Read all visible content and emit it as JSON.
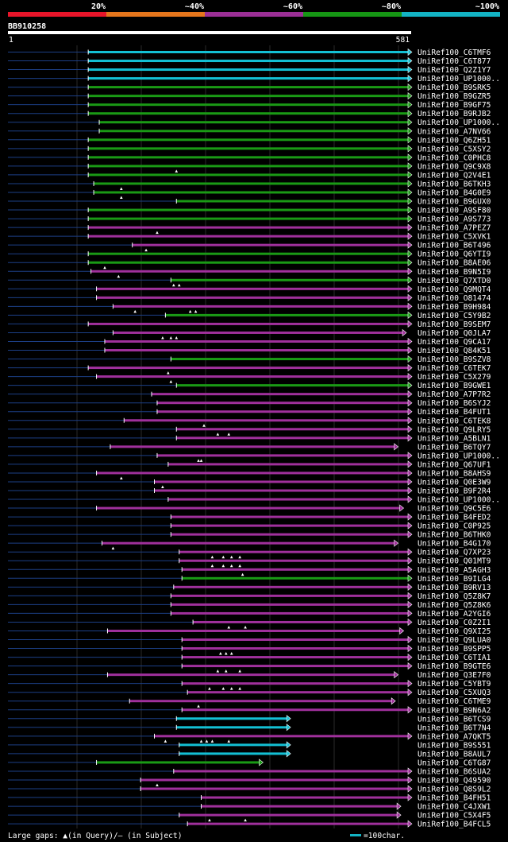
{
  "chart_data": {
    "type": "alignment-overview",
    "query_id": "BB910258",
    "query_start": 1,
    "query_end": 581,
    "identity_legend": [
      {
        "label": "20%",
        "color": "#e8152a"
      },
      {
        "label": "~40%",
        "color": "#e5761c"
      },
      {
        "label": "~60%",
        "color": "#9b2f96"
      },
      {
        "label": "~80%",
        "color": "#169614"
      },
      {
        "label": "~100%",
        "color": "#13b3c4"
      }
    ],
    "footer": {
      "gap_legend": "Large gaps: ▲(in Query)/– (in Subject)",
      "scale_legend": "=100char."
    },
    "scale_bar_length": 100,
    "hits": [
      {
        "name": "UniRef100_C6TMF6",
        "start": 160,
        "end": 740,
        "color": "cyan",
        "gaps": []
      },
      {
        "name": "UniRef100_C6T877",
        "start": 160,
        "end": 740,
        "color": "cyan",
        "gaps": []
      },
      {
        "name": "UniRef100_Q2Z1Y7",
        "start": 160,
        "end": 740,
        "color": "cyan",
        "gaps": []
      },
      {
        "name": "UniRef100_UP1000..",
        "start": 160,
        "end": 740,
        "color": "cyan",
        "gaps": []
      },
      {
        "name": "UniRef100_B9SRK5",
        "start": 160,
        "end": 740,
        "color": "green",
        "gaps": []
      },
      {
        "name": "UniRef100_B9GZR5",
        "start": 160,
        "end": 740,
        "color": "green",
        "gaps": []
      },
      {
        "name": "UniRef100_B9GF75",
        "start": 160,
        "end": 740,
        "color": "green",
        "gaps": []
      },
      {
        "name": "UniRef100_B9RJB2",
        "start": 160,
        "end": 740,
        "color": "green",
        "gaps": []
      },
      {
        "name": "UniRef100_UP1000..",
        "start": 180,
        "end": 740,
        "color": "green",
        "gaps": []
      },
      {
        "name": "UniRef100_A7NV66",
        "start": 180,
        "end": 740,
        "color": "green",
        "gaps": []
      },
      {
        "name": "UniRef100_Q6ZH51",
        "start": 160,
        "end": 740,
        "color": "green",
        "gaps": []
      },
      {
        "name": "UniRef100_C5XSY2",
        "start": 160,
        "end": 740,
        "color": "green",
        "gaps": []
      },
      {
        "name": "UniRef100_C0PHC8",
        "start": 160,
        "end": 740,
        "color": "green",
        "gaps": []
      },
      {
        "name": "UniRef100_Q9C9X8",
        "start": 160,
        "end": 740,
        "color": "green",
        "gaps": [
          320
        ]
      },
      {
        "name": "UniRef100_Q2V4E1",
        "start": 160,
        "end": 740,
        "color": "green",
        "gaps": []
      },
      {
        "name": "UniRef100_B6TKH3",
        "start": 170,
        "end": 740,
        "color": "green",
        "gaps": [
          220
        ]
      },
      {
        "name": "UniRef100_B4G0E9",
        "start": 170,
        "end": 740,
        "color": "green",
        "gaps": [
          220
        ]
      },
      {
        "name": "UniRef100_B9GUX0",
        "start": 320,
        "end": 740,
        "color": "green",
        "gaps": []
      },
      {
        "name": "UniRef100_A9SF80",
        "start": 160,
        "end": 740,
        "color": "green",
        "gaps": []
      },
      {
        "name": "UniRef100_A9S773",
        "start": 160,
        "end": 740,
        "color": "green",
        "gaps": []
      },
      {
        "name": "UniRef100_A7PEZ7",
        "start": 160,
        "end": 740,
        "color": "purple",
        "gaps": [
          285
        ]
      },
      {
        "name": "UniRef100_C5XVK1",
        "start": 160,
        "end": 740,
        "color": "purple",
        "gaps": []
      },
      {
        "name": "UniRef100_B6T496",
        "start": 240,
        "end": 740,
        "color": "purple",
        "gaps": [
          265
        ]
      },
      {
        "name": "UniRef100_Q6YTI9",
        "start": 160,
        "end": 740,
        "color": "green",
        "gaps": []
      },
      {
        "name": "UniRef100_B8AE06",
        "start": 160,
        "end": 740,
        "color": "green",
        "gaps": [
          190
        ]
      },
      {
        "name": "UniRef100_B9N5I9",
        "start": 165,
        "end": 740,
        "color": "purple",
        "gaps": [
          215
        ]
      },
      {
        "name": "UniRef100_Q7XTD0",
        "start": 310,
        "end": 740,
        "color": "green",
        "gaps": [
          315,
          325
        ]
      },
      {
        "name": "UniRef100_Q9MQT4",
        "start": 175,
        "end": 740,
        "color": "purple",
        "gaps": []
      },
      {
        "name": "UniRef100_O81474",
        "start": 175,
        "end": 740,
        "color": "purple",
        "gaps": []
      },
      {
        "name": "UniRef100_B9H984",
        "start": 205,
        "end": 740,
        "color": "purple",
        "gaps": [
          245,
          345,
          355
        ]
      },
      {
        "name": "UniRef100_C5Y9B2",
        "start": 300,
        "end": 740,
        "color": "green",
        "gaps": []
      },
      {
        "name": "UniRef100_B9SEM7",
        "start": 160,
        "end": 740,
        "color": "purple",
        "gaps": []
      },
      {
        "name": "UniRef100_Q0JLA7",
        "start": 205,
        "end": 730,
        "color": "purple",
        "gaps": [
          295,
          310,
          320
        ]
      },
      {
        "name": "UniRef100_Q9CA17",
        "start": 190,
        "end": 740,
        "color": "purple",
        "gaps": []
      },
      {
        "name": "UniRef100_Q84K51",
        "start": 190,
        "end": 740,
        "color": "purple",
        "gaps": []
      },
      {
        "name": "UniRef100_B9SZV8",
        "start": 310,
        "end": 740,
        "color": "green",
        "gaps": []
      },
      {
        "name": "UniRef100_C6TEK7",
        "start": 160,
        "end": 740,
        "color": "purple",
        "gaps": [
          305
        ]
      },
      {
        "name": "UniRef100_C5X279",
        "start": 175,
        "end": 740,
        "color": "purple",
        "gaps": [
          310
        ]
      },
      {
        "name": "UniRef100_B9GWE1",
        "start": 320,
        "end": 740,
        "color": "green",
        "gaps": []
      },
      {
        "name": "UniRef100_A7P7R2",
        "start": 275,
        "end": 740,
        "color": "purple",
        "gaps": []
      },
      {
        "name": "UniRef100_B6SYJ2",
        "start": 285,
        "end": 740,
        "color": "purple",
        "gaps": []
      },
      {
        "name": "UniRef100_B4FUT1",
        "start": 285,
        "end": 740,
        "color": "purple",
        "gaps": []
      },
      {
        "name": "UniRef100_C6TEK8",
        "start": 225,
        "end": 740,
        "color": "purple",
        "gaps": [
          370
        ]
      },
      {
        "name": "UniRef100_Q9LRY5",
        "start": 320,
        "end": 740,
        "color": "purple",
        "gaps": [
          395,
          415
        ]
      },
      {
        "name": "UniRef100_A5BLN1",
        "start": 320,
        "end": 740,
        "color": "purple",
        "gaps": []
      },
      {
        "name": "UniRef100_B6TQY7",
        "start": 200,
        "end": 715,
        "color": "purple",
        "gaps": []
      },
      {
        "name": "UniRef100_UP1000..",
        "start": 285,
        "end": 740,
        "color": "purple",
        "gaps": [
          360,
          365
        ]
      },
      {
        "name": "UniRef100_Q67UF1",
        "start": 305,
        "end": 740,
        "color": "purple",
        "gaps": []
      },
      {
        "name": "UniRef100_B8AHS9",
        "start": 175,
        "end": 740,
        "color": "purple",
        "gaps": [
          220
        ]
      },
      {
        "name": "UniRef100_Q0E3W9",
        "start": 280,
        "end": 740,
        "color": "purple",
        "gaps": [
          295
        ]
      },
      {
        "name": "UniRef100_B9F2R4",
        "start": 280,
        "end": 740,
        "color": "purple",
        "gaps": []
      },
      {
        "name": "UniRef100_UP1000..",
        "start": 305,
        "end": 740,
        "color": "purple",
        "gaps": []
      },
      {
        "name": "UniRef100_Q9C5E6",
        "start": 175,
        "end": 725,
        "color": "purple",
        "gaps": []
      },
      {
        "name": "UniRef100_B4FED2",
        "start": 310,
        "end": 740,
        "color": "purple",
        "gaps": []
      },
      {
        "name": "UniRef100_C0P925",
        "start": 310,
        "end": 740,
        "color": "purple",
        "gaps": []
      },
      {
        "name": "UniRef100_B6THK0",
        "start": 310,
        "end": 740,
        "color": "purple",
        "gaps": []
      },
      {
        "name": "UniRef100_B4G170",
        "start": 185,
        "end": 715,
        "color": "purple",
        "gaps": [
          205
        ]
      },
      {
        "name": "UniRef100_Q7XP23",
        "start": 325,
        "end": 740,
        "color": "purple",
        "gaps": [
          385,
          405,
          420,
          435
        ]
      },
      {
        "name": "UniRef100_Q01MT9",
        "start": 325,
        "end": 740,
        "color": "purple",
        "gaps": [
          385,
          405,
          420,
          435
        ]
      },
      {
        "name": "UniRef100_A5AGH3",
        "start": 330,
        "end": 740,
        "color": "purple",
        "gaps": [
          440
        ]
      },
      {
        "name": "UniRef100_B9ILG4",
        "start": 330,
        "end": 740,
        "color": "green",
        "gaps": []
      },
      {
        "name": "UniRef100_B9RV13",
        "start": 315,
        "end": 740,
        "color": "purple",
        "gaps": []
      },
      {
        "name": "UniRef100_Q5Z8K7",
        "start": 310,
        "end": 740,
        "color": "purple",
        "gaps": []
      },
      {
        "name": "UniRef100_Q5Z8K6",
        "start": 310,
        "end": 740,
        "color": "purple",
        "gaps": []
      },
      {
        "name": "UniRef100_A2YGI6",
        "start": 310,
        "end": 740,
        "color": "purple",
        "gaps": []
      },
      {
        "name": "UniRef100_C0Z2I1",
        "start": 350,
        "end": 740,
        "color": "purple",
        "gaps": [
          415,
          445
        ]
      },
      {
        "name": "UniRef100_Q9XI25",
        "start": 195,
        "end": 725,
        "color": "purple",
        "gaps": []
      },
      {
        "name": "UniRef100_Q9LUA0",
        "start": 330,
        "end": 740,
        "color": "purple",
        "gaps": []
      },
      {
        "name": "UniRef100_B9SPP5",
        "start": 330,
        "end": 740,
        "color": "purple",
        "gaps": [
          400,
          410,
          420
        ]
      },
      {
        "name": "UniRef100_C6TIA1",
        "start": 330,
        "end": 740,
        "color": "purple",
        "gaps": []
      },
      {
        "name": "UniRef100_B9GTE6",
        "start": 330,
        "end": 740,
        "color": "purple",
        "gaps": [
          395,
          410,
          435
        ]
      },
      {
        "name": "UniRef100_Q3E7F0",
        "start": 195,
        "end": 715,
        "color": "purple",
        "gaps": []
      },
      {
        "name": "UniRef100_C5YBT9",
        "start": 330,
        "end": 740,
        "color": "purple",
        "gaps": [
          380,
          405,
          420,
          435
        ]
      },
      {
        "name": "UniRef100_C5XUQ3",
        "start": 340,
        "end": 740,
        "color": "purple",
        "gaps": []
      },
      {
        "name": "UniRef100_C6TME9",
        "start": 235,
        "end": 710,
        "color": "purple",
        "gaps": [
          360
        ]
      },
      {
        "name": "UniRef100_B9N6A2",
        "start": 330,
        "end": 740,
        "color": "purple",
        "gaps": []
      },
      {
        "name": "UniRef100_B6TCS9",
        "start": 320,
        "end": 520,
        "color": "cyan",
        "gaps": []
      },
      {
        "name": "UniRef100_B6T7N4",
        "start": 320,
        "end": 520,
        "color": "cyan",
        "gaps": []
      },
      {
        "name": "UniRef100_A7QKT5",
        "start": 280,
        "end": 740,
        "color": "purple",
        "gaps": [
          300,
          365,
          375,
          385,
          415
        ]
      },
      {
        "name": "UniRef100_B9S551",
        "start": 325,
        "end": 520,
        "color": "cyan",
        "gaps": []
      },
      {
        "name": "UniRef100_B8AUL7",
        "start": 325,
        "end": 520,
        "color": "cyan",
        "gaps": []
      },
      {
        "name": "UniRef100_C6TG87",
        "start": 175,
        "end": 470,
        "color": "green",
        "gaps": []
      },
      {
        "name": "UniRef100_B6SUA2",
        "start": 315,
        "end": 740,
        "color": "purple",
        "gaps": []
      },
      {
        "name": "UniRef100_Q49590",
        "start": 255,
        "end": 740,
        "color": "purple",
        "gaps": [
          285
        ]
      },
      {
        "name": "UniRef100_Q8S9L2",
        "start": 255,
        "end": 740,
        "color": "purple",
        "gaps": []
      },
      {
        "name": "UniRef100_B4FH51",
        "start": 365,
        "end": 740,
        "color": "purple",
        "gaps": []
      },
      {
        "name": "UniRef100_C4JXW1",
        "start": 365,
        "end": 720,
        "color": "purple",
        "gaps": []
      },
      {
        "name": "UniRef100_C5X4F5",
        "start": 325,
        "end": 720,
        "color": "purple",
        "gaps": [
          380,
          445
        ]
      },
      {
        "name": "UniRef100_B4FCL5",
        "start": 340,
        "end": 740,
        "color": "purple",
        "gaps": []
      }
    ]
  }
}
